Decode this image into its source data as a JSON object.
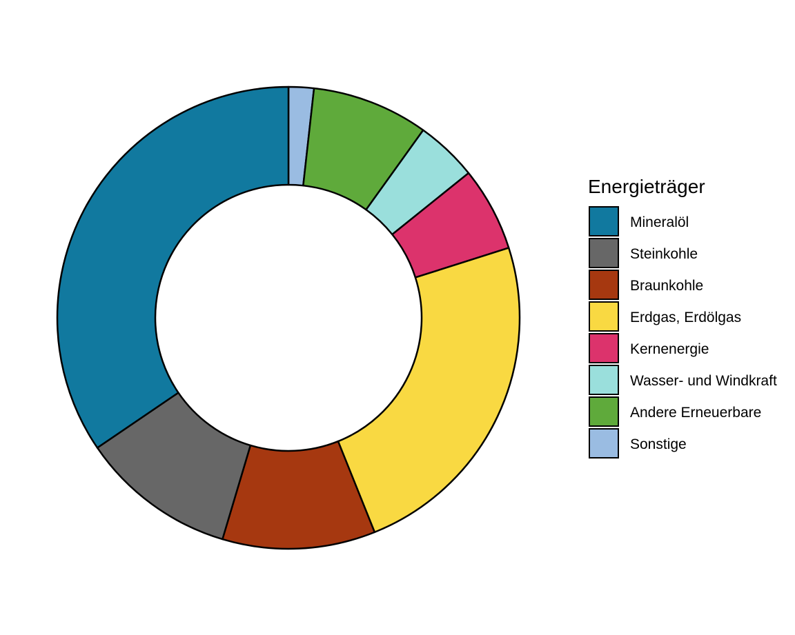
{
  "chart_data": {
    "type": "pie",
    "variant": "donut",
    "legend": {
      "title": "Energieträger",
      "position": "right"
    },
    "categories": [
      "Mineralöl",
      "Steinkohle",
      "Braunkohle",
      "Erdgas, Erdölgas",
      "Kernenergie",
      "Wasser- und Windkraft",
      "Andere Erneuerbare",
      "Sonstige"
    ],
    "values": [
      35.2,
      11.1,
      10.9,
      24.3,
      6.0,
      4.4,
      8.3,
      1.8
    ],
    "colors": [
      "#11799f",
      "#676767",
      "#a63810",
      "#f9d942",
      "#dc336c",
      "#9adfdc",
      "#5faa3b",
      "#9abce2"
    ],
    "slice_order": [
      7,
      6,
      5,
      4,
      3,
      2,
      1,
      0
    ]
  }
}
